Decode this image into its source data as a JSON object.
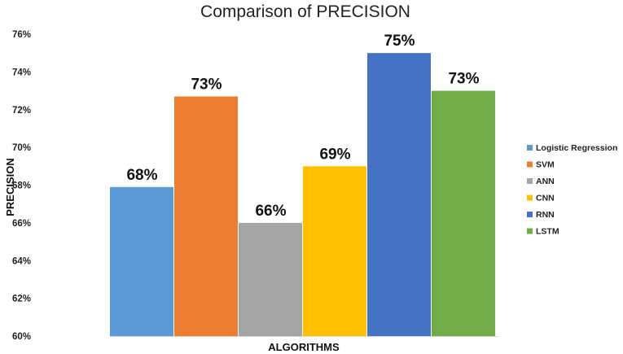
{
  "chart_data": {
    "type": "bar",
    "title": "Comparison of PRECISION",
    "xlabel": "ALGORITHMS",
    "ylabel": "PRECISION",
    "ylim": [
      60,
      76
    ],
    "yticks": [
      60,
      62,
      64,
      66,
      68,
      70,
      72,
      74,
      76
    ],
    "ytick_suffix": "%",
    "grid": false,
    "legend_position": "right",
    "series": [
      {
        "name": "Logistic Regression",
        "value": 67.9,
        "label": "68%",
        "color": "#5b9bd5"
      },
      {
        "name": "SVM",
        "value": 72.7,
        "label": "73%",
        "color": "#ed7d31"
      },
      {
        "name": "ANN",
        "value": 66.0,
        "label": "66%",
        "color": "#a5a5a5"
      },
      {
        "name": "CNN",
        "value": 69.0,
        "label": "69%",
        "color": "#ffc000"
      },
      {
        "name": "RNN",
        "value": 75.0,
        "label": "75%",
        "color": "#4472c4"
      },
      {
        "name": "LSTM",
        "value": 73.0,
        "label": "73%",
        "color": "#70ad47"
      }
    ]
  }
}
